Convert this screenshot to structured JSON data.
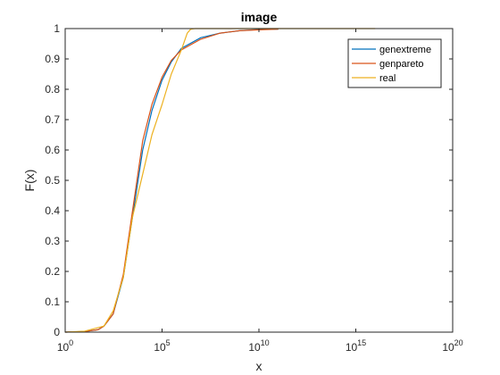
{
  "chart_data": {
    "type": "line",
    "title": "image",
    "xlabel": "x",
    "ylabel": "F(x)",
    "x_scale": "log10",
    "xlim": [
      1,
      1e+20
    ],
    "ylim": [
      0,
      1
    ],
    "x_ticks": [
      {
        "value": 1,
        "base": "10",
        "exp": "0"
      },
      {
        "value": 100000,
        "base": "10",
        "exp": "5"
      },
      {
        "value": 10000000000.0,
        "base": "10",
        "exp": "10"
      },
      {
        "value": 1000000000000000.0,
        "base": "10",
        "exp": "15"
      },
      {
        "value": 1e+20,
        "base": "10",
        "exp": "20"
      }
    ],
    "y_ticks": [
      "0",
      "0.1",
      "0.2",
      "0.3",
      "0.4",
      "0.5",
      "0.6",
      "0.7",
      "0.8",
      "0.9",
      "1"
    ],
    "grid": false,
    "legend_position": "top-right",
    "series": [
      {
        "name": "genextreme",
        "color": "#0072BD",
        "x": [
          1,
          10,
          50,
          100,
          300,
          1000,
          3000,
          10000,
          30000,
          100000,
          300000,
          1000000,
          10000000,
          100000000,
          1000000000.0,
          10000000000.0,
          100000000000.0
        ],
        "y": [
          0,
          0.002,
          0.008,
          0.02,
          0.06,
          0.18,
          0.38,
          0.6,
          0.73,
          0.83,
          0.89,
          0.935,
          0.97,
          0.985,
          0.993,
          0.997,
          0.998
        ]
      },
      {
        "name": "genpareto",
        "color": "#D95319",
        "x": [
          1,
          10,
          50,
          100,
          300,
          1000,
          3000,
          10000,
          30000,
          100000,
          300000,
          1000000,
          10000000,
          100000000,
          1000000000.0,
          10000000000.0,
          100000000000.0
        ],
        "y": [
          0,
          0.002,
          0.008,
          0.02,
          0.06,
          0.19,
          0.4,
          0.63,
          0.75,
          0.84,
          0.895,
          0.93,
          0.965,
          0.985,
          0.993,
          0.996,
          0.998
        ]
      },
      {
        "name": "real",
        "color": "#EDB120",
        "x": [
          1,
          10,
          100,
          300,
          1000,
          3000,
          10000,
          30000,
          100000,
          300000,
          1000000,
          2000000,
          3000000,
          5000000,
          1000000000.0,
          1000000000000000.0,
          1e+16
        ],
        "y": [
          0,
          0.003,
          0.02,
          0.07,
          0.18,
          0.38,
          0.52,
          0.65,
          0.75,
          0.85,
          0.93,
          0.985,
          0.998,
          1,
          1,
          1,
          1
        ]
      }
    ]
  }
}
